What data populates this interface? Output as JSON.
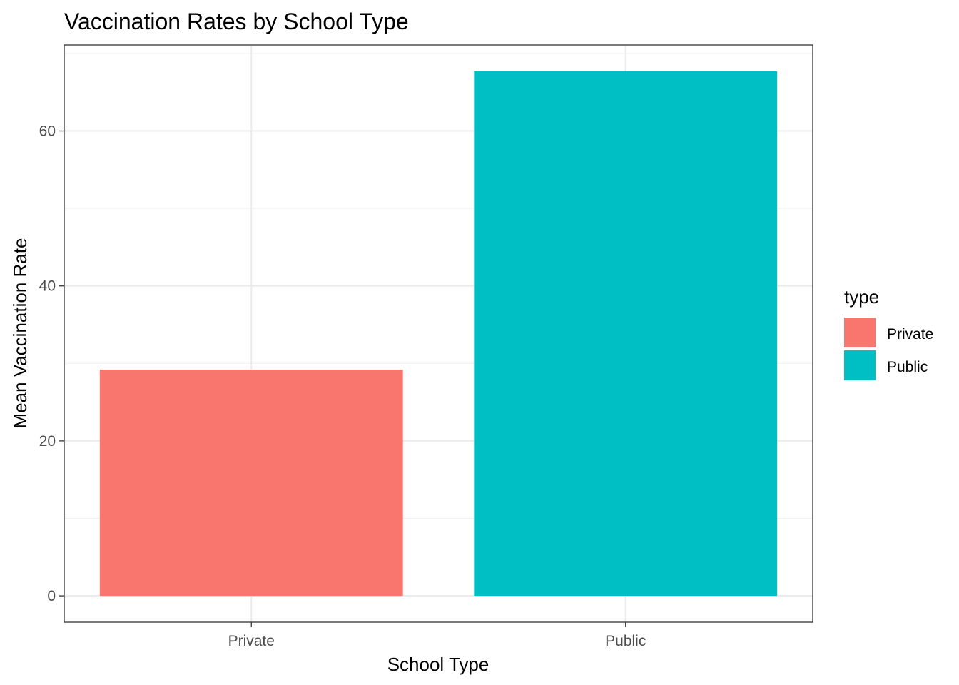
{
  "chart_data": {
    "type": "bar",
    "title": "Vaccination Rates by School Type",
    "xlabel": "School Type",
    "ylabel": "Mean Vaccination Rate",
    "categories": [
      "Private",
      "Public"
    ],
    "values": [
      29.2,
      67.7
    ],
    "colors": [
      "#F8766D",
      "#00BFC4"
    ],
    "ylim": [
      -3.4,
      71.1
    ],
    "yticks": [
      0,
      20,
      40,
      60
    ],
    "ytick_labels": [
      "0",
      "20",
      "40",
      "60"
    ],
    "grid": true,
    "legend": {
      "title": "type",
      "position": "right",
      "entries": [
        "Private",
        "Public"
      ]
    }
  }
}
